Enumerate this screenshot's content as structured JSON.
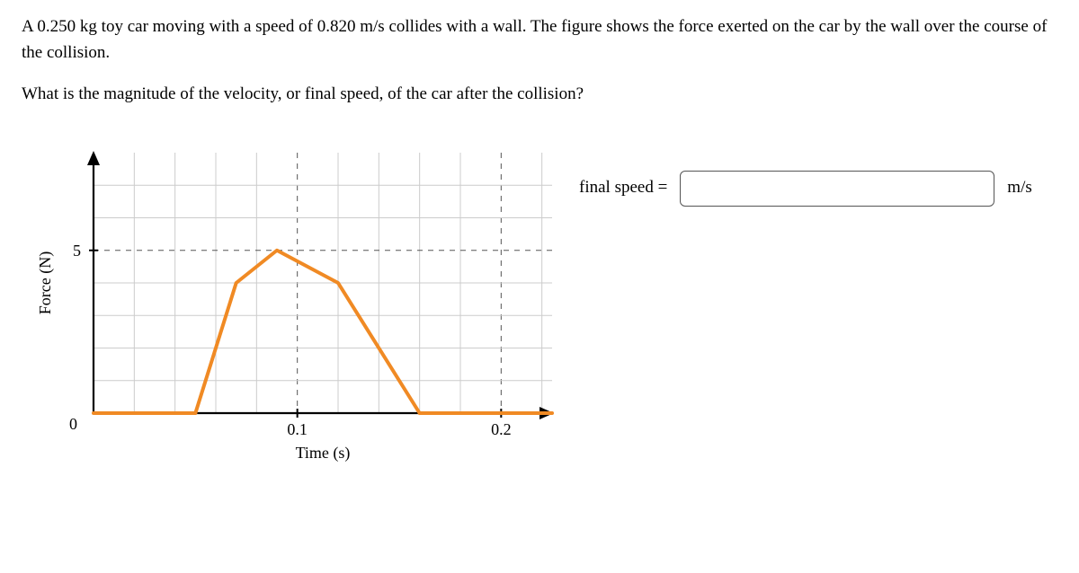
{
  "problem": {
    "line1": "A 0.250 kg toy car moving with a speed of 0.820 m/s collides with a wall. The figure shows the force exerted on the car by the wall over the course of the collision.",
    "line2": "What is the magnitude of the velocity, or final speed, of the car after the collision?"
  },
  "answer": {
    "label": "final speed =",
    "value": "",
    "unit": "m/s"
  },
  "chart": {
    "type": "line",
    "xlabel": "Time (s)",
    "ylabel": "Force (N)",
    "background_color": "#ffffff",
    "grid_color": "#cccccc",
    "grid_minor_dash": "6,6",
    "axis_color": "#000000",
    "axis_width": 2.2,
    "series_color": "#f08a24",
    "series_width": 4,
    "xlim": [
      0,
      0.225
    ],
    "ylim": [
      0,
      8
    ],
    "x_ticks": [
      0.1,
      0.2
    ],
    "x_tick_labels": [
      "0.1",
      "0.2"
    ],
    "y_ticks": [
      5
    ],
    "y_tick_labels": [
      "5"
    ],
    "origin_label": "0",
    "x_minor": [
      0.02,
      0.04,
      0.06,
      0.08,
      0.12,
      0.14,
      0.16,
      0.18,
      0.22
    ],
    "x_major_dashed": [
      0.1,
      0.2
    ],
    "y_minor": [
      1,
      2,
      3,
      4,
      6,
      7
    ],
    "y_major_dashed": [
      5
    ],
    "baseline_left": {
      "from_x": 0,
      "to_x": 0.05,
      "y": 0
    },
    "baseline_right": {
      "from_x": 0.16,
      "to_x": 0.225,
      "y": 0
    },
    "data": {
      "x": [
        0.05,
        0.07,
        0.09,
        0.12,
        0.16
      ],
      "y": [
        0.0,
        4.0,
        5.0,
        4.0,
        0.0
      ]
    },
    "label_fontsize": 18
  }
}
